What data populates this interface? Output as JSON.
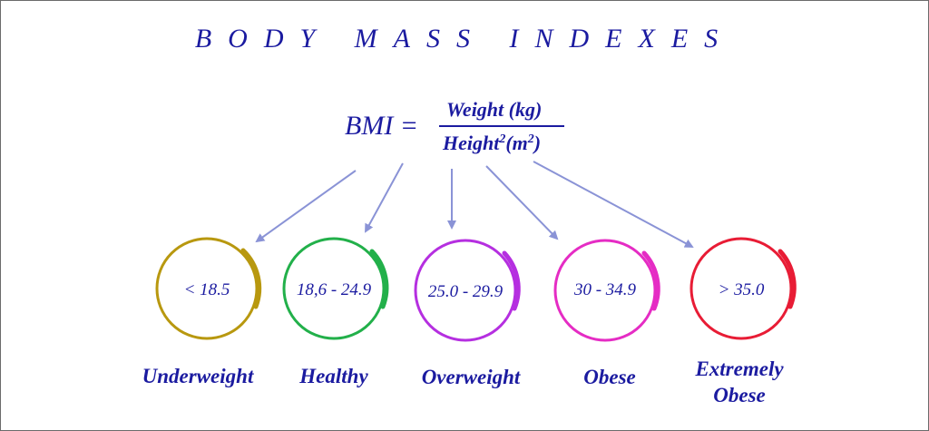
{
  "title": "BODY MASS INDEXES",
  "formula": {
    "lhs": "BMI =",
    "numerator": "Weight (kg)",
    "denominator_main": "Height",
    "denominator_sup": "2",
    "denominator_unit_open": "(m",
    "denominator_unit_sup": "2",
    "denominator_unit_close": ")"
  },
  "categories": [
    {
      "range": "< 18.5",
      "label": "Underweight",
      "color": "#b8980f"
    },
    {
      "range": "18,6 - 24.9",
      "label": "Healthy",
      "color": "#22b04a"
    },
    {
      "range": "25.0 - 29.9",
      "label": "Overweight",
      "color": "#b52fe0"
    },
    {
      "range": "30 - 34.9",
      "label": "Obese",
      "color": "#e52cc4"
    },
    {
      "range": "> 35.0",
      "label_line1": "Extremely",
      "label_line2": "Obese",
      "color": "#e81c35"
    }
  ],
  "arrow_color": "#8a93d6"
}
